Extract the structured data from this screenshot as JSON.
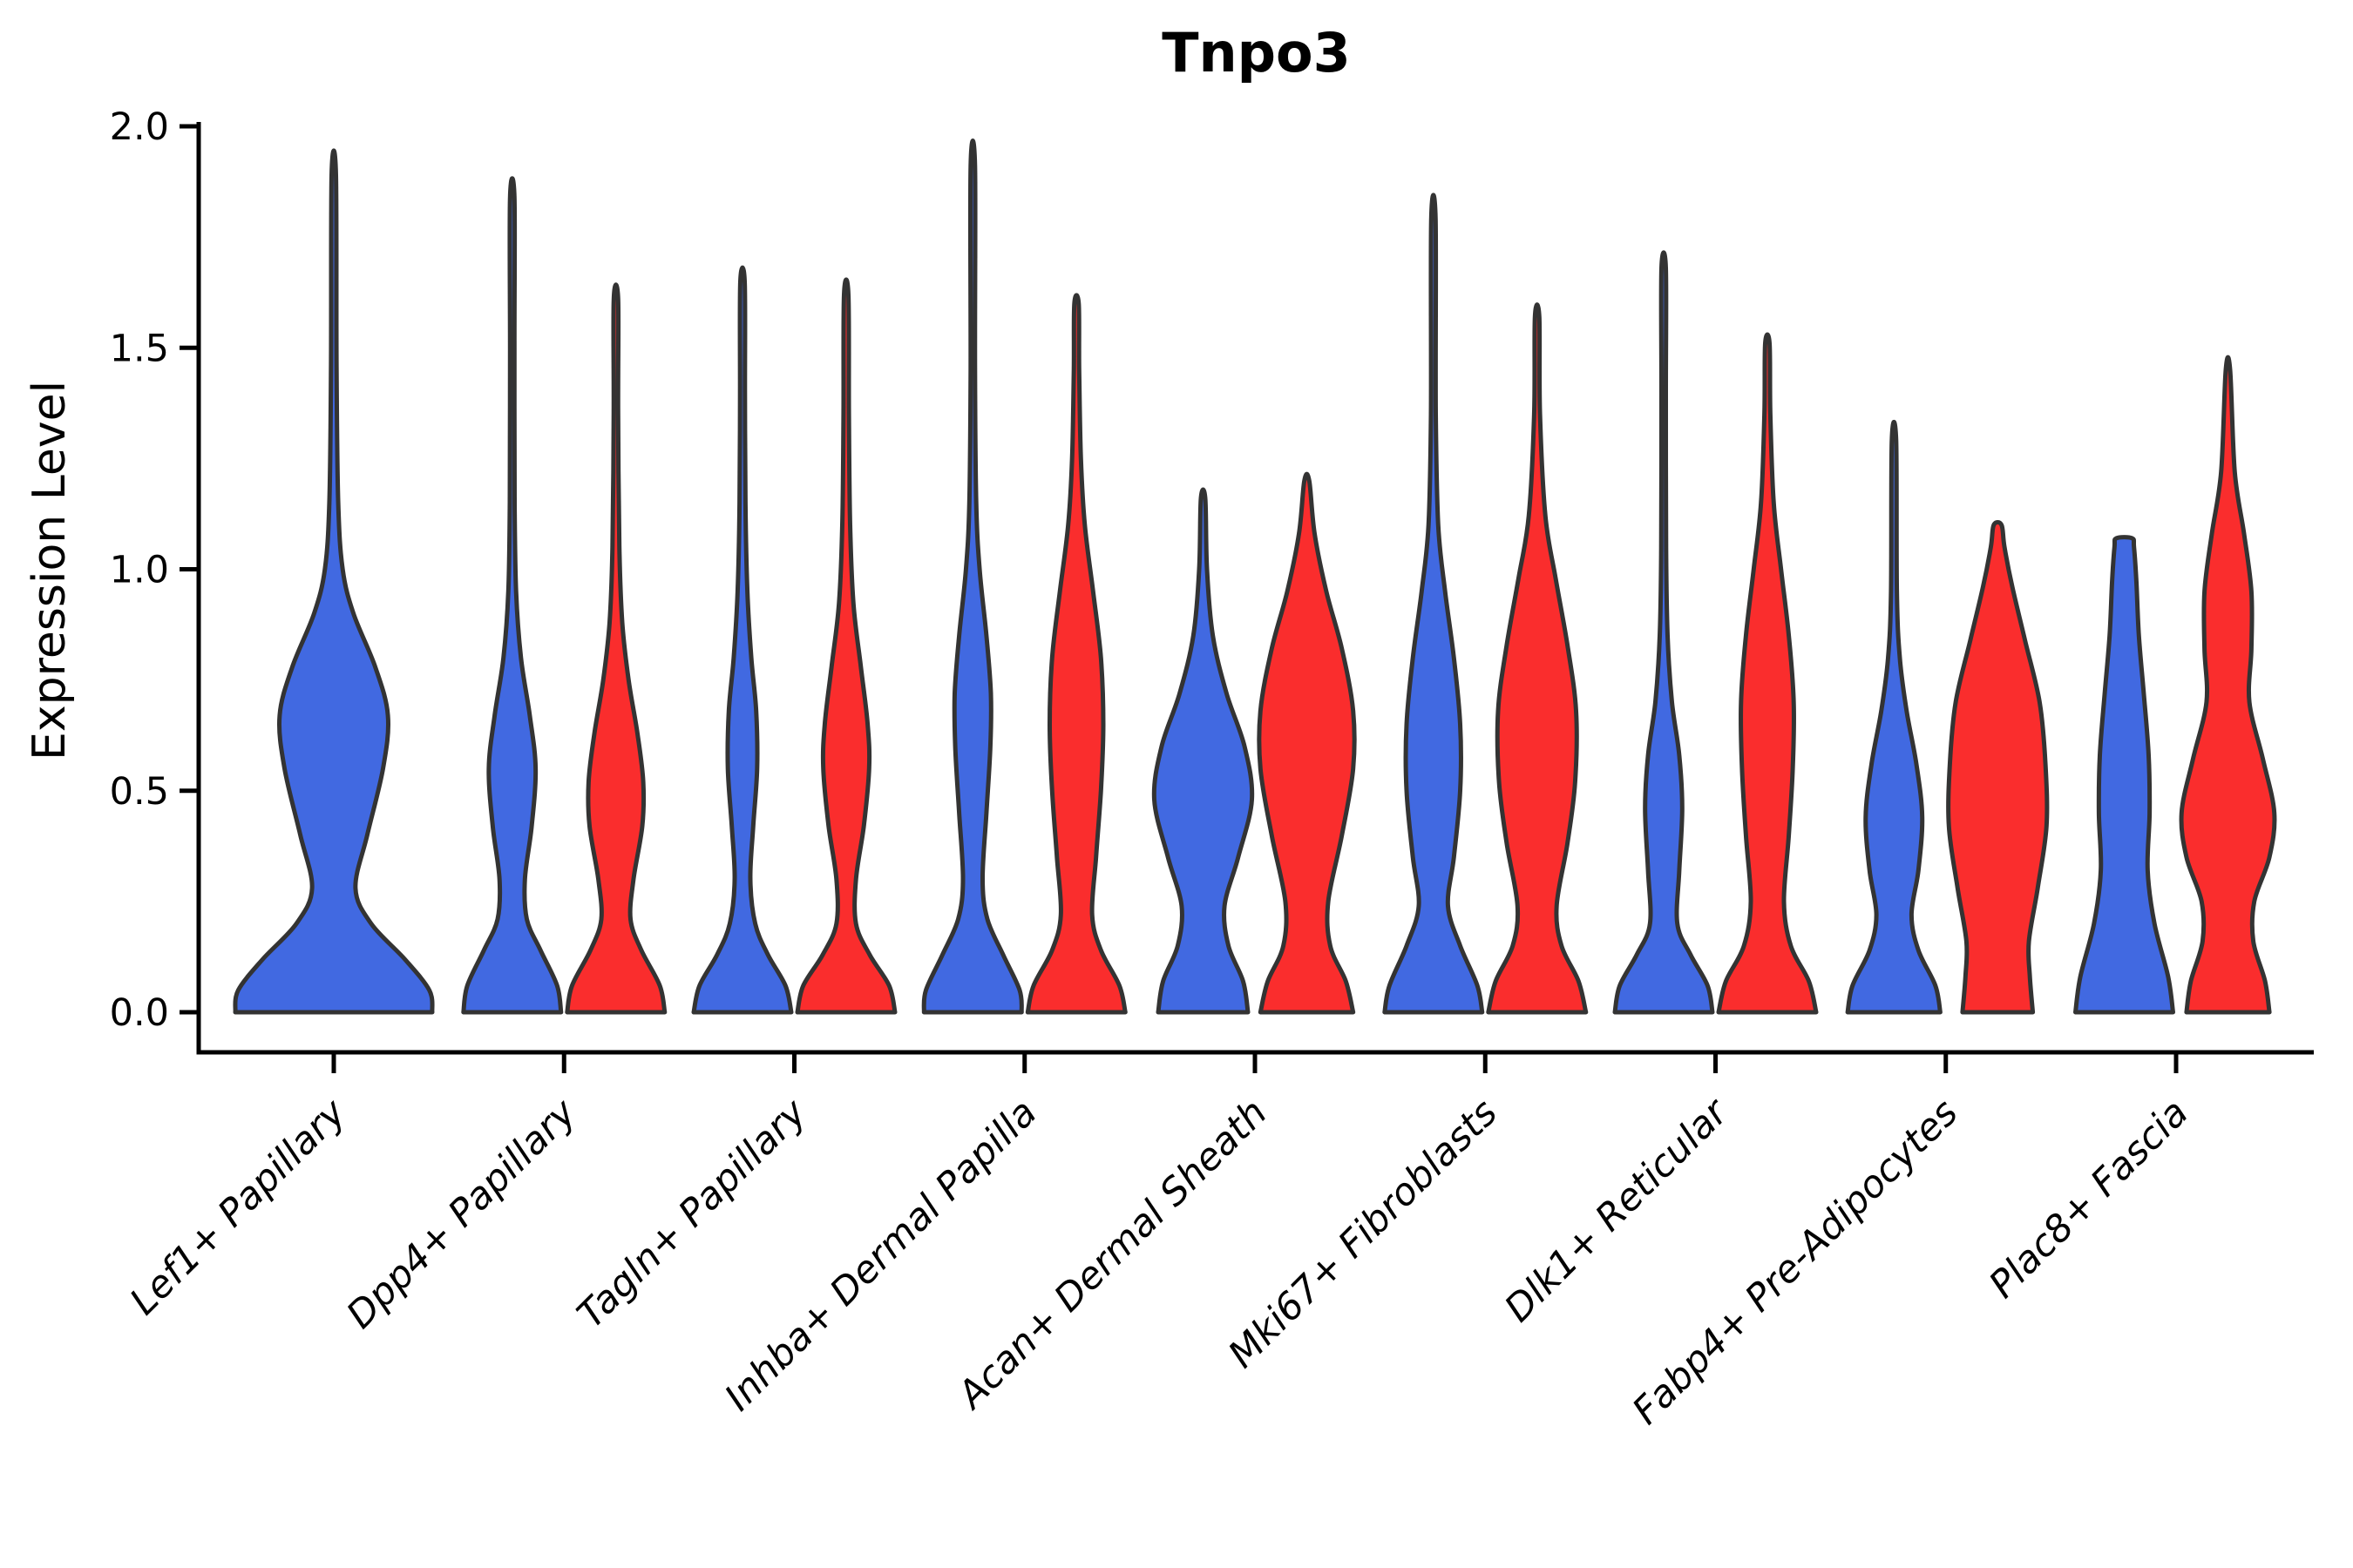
{
  "chart_data": {
    "type": "violin",
    "title": "Tnpo3",
    "ylabel": "Expression Level",
    "xlabel": "",
    "ylim": [
      0.0,
      2.0
    ],
    "ytick_labels": [
      "0.0",
      "0.5",
      "1.0",
      "1.5",
      "2.0"
    ],
    "ytick_values": [
      0.0,
      0.5,
      1.0,
      1.5,
      2.0
    ],
    "grid": false,
    "legend": "none",
    "colors": {
      "blue": "#4169E1",
      "red": "#FA2D2D",
      "outline": "#333333",
      "axis": "#000000"
    },
    "categories": [
      "Lef1+ Papillary",
      "Dpp4+ Papillary",
      "Tagln+ Papillary",
      "Inhba+ Dermal Papilla",
      "Acan+ Dermal Sheath",
      "Mki67+ Fibroblasts",
      "Dlk1+ Reticular",
      "Fabp4+ Pre-Adipocytes",
      "Plac8+ Fascia"
    ],
    "violins": [
      {
        "category": "Lef1+ Papillary",
        "side": "blue",
        "solo": true,
        "max": 1.89,
        "profile": [
          [
            0,
            1.0
          ],
          [
            0.05,
            0.97
          ],
          [
            0.12,
            0.72
          ],
          [
            0.2,
            0.38
          ],
          [
            0.28,
            0.22
          ],
          [
            0.4,
            0.34
          ],
          [
            0.55,
            0.5
          ],
          [
            0.67,
            0.55
          ],
          [
            0.78,
            0.42
          ],
          [
            0.9,
            0.2
          ],
          [
            1.0,
            0.09
          ],
          [
            1.15,
            0.045
          ],
          [
            1.45,
            0.028
          ],
          [
            1.89,
            0.02
          ]
        ]
      },
      {
        "category": "Dpp4+ Papillary",
        "side": "blue",
        "solo": false,
        "max": 1.84,
        "profile": [
          [
            0,
            1.0
          ],
          [
            0.06,
            0.92
          ],
          [
            0.14,
            0.58
          ],
          [
            0.21,
            0.3
          ],
          [
            0.3,
            0.26
          ],
          [
            0.42,
            0.4
          ],
          [
            0.55,
            0.48
          ],
          [
            0.67,
            0.36
          ],
          [
            0.8,
            0.18
          ],
          [
            0.95,
            0.08
          ],
          [
            1.15,
            0.05
          ],
          [
            1.5,
            0.035
          ],
          [
            1.84,
            0.03
          ]
        ]
      },
      {
        "category": "Dpp4+ Papillary",
        "side": "red",
        "solo": false,
        "max": 1.61,
        "profile": [
          [
            0,
            1.0
          ],
          [
            0.06,
            0.9
          ],
          [
            0.14,
            0.52
          ],
          [
            0.21,
            0.3
          ],
          [
            0.3,
            0.36
          ],
          [
            0.42,
            0.54
          ],
          [
            0.52,
            0.56
          ],
          [
            0.63,
            0.44
          ],
          [
            0.75,
            0.26
          ],
          [
            0.88,
            0.13
          ],
          [
            1.05,
            0.07
          ],
          [
            1.35,
            0.045
          ],
          [
            1.61,
            0.035
          ]
        ]
      },
      {
        "category": "Tagln+ Papillary",
        "side": "blue",
        "solo": false,
        "max": 1.65,
        "profile": [
          [
            0,
            1.0
          ],
          [
            0.06,
            0.88
          ],
          [
            0.13,
            0.52
          ],
          [
            0.2,
            0.26
          ],
          [
            0.3,
            0.16
          ],
          [
            0.42,
            0.22
          ],
          [
            0.55,
            0.3
          ],
          [
            0.68,
            0.28
          ],
          [
            0.8,
            0.18
          ],
          [
            0.95,
            0.1
          ],
          [
            1.15,
            0.06
          ],
          [
            1.4,
            0.05
          ],
          [
            1.65,
            0.045
          ]
        ]
      },
      {
        "category": "Tagln+ Papillary",
        "side": "red",
        "solo": false,
        "max": 1.62,
        "profile": [
          [
            0,
            1.0
          ],
          [
            0.06,
            0.88
          ],
          [
            0.13,
            0.48
          ],
          [
            0.2,
            0.2
          ],
          [
            0.3,
            0.2
          ],
          [
            0.42,
            0.36
          ],
          [
            0.55,
            0.47
          ],
          [
            0.65,
            0.44
          ],
          [
            0.78,
            0.3
          ],
          [
            0.92,
            0.15
          ],
          [
            1.1,
            0.08
          ],
          [
            1.35,
            0.055
          ],
          [
            1.62,
            0.045
          ]
        ]
      },
      {
        "category": "Inhba+ Dermal Papilla",
        "side": "blue",
        "solo": false,
        "max": 1.91,
        "profile": [
          [
            0,
            1.0
          ],
          [
            0.05,
            0.96
          ],
          [
            0.13,
            0.62
          ],
          [
            0.21,
            0.3
          ],
          [
            0.3,
            0.2
          ],
          [
            0.45,
            0.28
          ],
          [
            0.6,
            0.36
          ],
          [
            0.72,
            0.37
          ],
          [
            0.85,
            0.28
          ],
          [
            1.0,
            0.14
          ],
          [
            1.15,
            0.07
          ],
          [
            1.45,
            0.04
          ],
          [
            1.91,
            0.028
          ]
        ]
      },
      {
        "category": "Inhba+ Dermal Papilla",
        "side": "red",
        "solo": false,
        "max": 1.6,
        "profile": [
          [
            0,
            1.0
          ],
          [
            0.06,
            0.88
          ],
          [
            0.14,
            0.5
          ],
          [
            0.22,
            0.32
          ],
          [
            0.35,
            0.4
          ],
          [
            0.5,
            0.5
          ],
          [
            0.65,
            0.55
          ],
          [
            0.8,
            0.5
          ],
          [
            0.95,
            0.34
          ],
          [
            1.1,
            0.17
          ],
          [
            1.25,
            0.09
          ],
          [
            1.45,
            0.055
          ],
          [
            1.6,
            0.04
          ]
        ]
      },
      {
        "category": "Acan+ Dermal Sheath",
        "side": "blue",
        "solo": false,
        "max": 1.16,
        "profile": [
          [
            0,
            0.92
          ],
          [
            0.07,
            0.82
          ],
          [
            0.15,
            0.52
          ],
          [
            0.24,
            0.44
          ],
          [
            0.35,
            0.72
          ],
          [
            0.48,
            1.0
          ],
          [
            0.6,
            0.85
          ],
          [
            0.72,
            0.48
          ],
          [
            0.85,
            0.2
          ],
          [
            1.0,
            0.08
          ],
          [
            1.16,
            0.04
          ]
        ]
      },
      {
        "category": "Acan+ Dermal Sheath",
        "side": "red",
        "solo": false,
        "max": 1.2,
        "profile": [
          [
            0,
            0.95
          ],
          [
            0.07,
            0.8
          ],
          [
            0.15,
            0.48
          ],
          [
            0.25,
            0.44
          ],
          [
            0.4,
            0.72
          ],
          [
            0.55,
            0.95
          ],
          [
            0.68,
            0.95
          ],
          [
            0.82,
            0.72
          ],
          [
            0.95,
            0.4
          ],
          [
            1.08,
            0.16
          ],
          [
            1.2,
            0.05
          ]
        ]
      },
      {
        "category": "Mki67+ Fibroblasts",
        "side": "blue",
        "solo": false,
        "max": 1.79,
        "profile": [
          [
            0,
            1.0
          ],
          [
            0.06,
            0.9
          ],
          [
            0.15,
            0.55
          ],
          [
            0.24,
            0.3
          ],
          [
            0.35,
            0.42
          ],
          [
            0.5,
            0.55
          ],
          [
            0.65,
            0.55
          ],
          [
            0.8,
            0.42
          ],
          [
            0.95,
            0.24
          ],
          [
            1.1,
            0.1
          ],
          [
            1.35,
            0.05
          ],
          [
            1.79,
            0.03
          ]
        ]
      },
      {
        "category": "Mki67+ Fibroblasts",
        "side": "red",
        "solo": false,
        "max": 1.57,
        "profile": [
          [
            0,
            1.0
          ],
          [
            0.07,
            0.85
          ],
          [
            0.15,
            0.5
          ],
          [
            0.24,
            0.4
          ],
          [
            0.38,
            0.62
          ],
          [
            0.52,
            0.78
          ],
          [
            0.68,
            0.8
          ],
          [
            0.83,
            0.62
          ],
          [
            0.98,
            0.38
          ],
          [
            1.12,
            0.17
          ],
          [
            1.35,
            0.06
          ],
          [
            1.57,
            0.035
          ]
        ]
      },
      {
        "category": "Dlk1+ Reticular",
        "side": "blue",
        "solo": false,
        "max": 1.68,
        "profile": [
          [
            0,
            1.0
          ],
          [
            0.06,
            0.9
          ],
          [
            0.13,
            0.55
          ],
          [
            0.2,
            0.28
          ],
          [
            0.32,
            0.32
          ],
          [
            0.46,
            0.38
          ],
          [
            0.58,
            0.32
          ],
          [
            0.7,
            0.17
          ],
          [
            0.85,
            0.08
          ],
          [
            1.05,
            0.05
          ],
          [
            1.4,
            0.035
          ],
          [
            1.68,
            0.03
          ]
        ]
      },
      {
        "category": "Dlk1+ Reticular",
        "side": "red",
        "solo": false,
        "max": 1.51,
        "profile": [
          [
            0,
            1.0
          ],
          [
            0.07,
            0.85
          ],
          [
            0.15,
            0.48
          ],
          [
            0.25,
            0.34
          ],
          [
            0.4,
            0.44
          ],
          [
            0.55,
            0.52
          ],
          [
            0.7,
            0.54
          ],
          [
            0.85,
            0.44
          ],
          [
            1.0,
            0.28
          ],
          [
            1.15,
            0.13
          ],
          [
            1.35,
            0.06
          ],
          [
            1.51,
            0.04
          ]
        ]
      },
      {
        "category": "Fabp4+ Pre-Adipocytes",
        "side": "blue",
        "solo": false,
        "max": 1.29,
        "profile": [
          [
            0,
            0.95
          ],
          [
            0.06,
            0.85
          ],
          [
            0.14,
            0.5
          ],
          [
            0.22,
            0.36
          ],
          [
            0.32,
            0.5
          ],
          [
            0.44,
            0.58
          ],
          [
            0.56,
            0.46
          ],
          [
            0.68,
            0.26
          ],
          [
            0.8,
            0.12
          ],
          [
            0.95,
            0.06
          ],
          [
            1.29,
            0.03
          ]
        ]
      },
      {
        "category": "Fabp4+ Pre-Adipocytes",
        "side": "red",
        "solo": false,
        "max": 1.1,
        "profile": [
          [
            0,
            0.72
          ],
          [
            0.08,
            0.66
          ],
          [
            0.16,
            0.64
          ],
          [
            0.28,
            0.82
          ],
          [
            0.42,
            1.0
          ],
          [
            0.56,
            0.98
          ],
          [
            0.7,
            0.86
          ],
          [
            0.84,
            0.56
          ],
          [
            0.96,
            0.3
          ],
          [
            1.05,
            0.14
          ],
          [
            1.1,
            0.08
          ]
        ]
      },
      {
        "category": "Plac8+ Fascia",
        "side": "blue",
        "solo": false,
        "max": 1.07,
        "profile": [
          [
            0,
            1.0
          ],
          [
            0.08,
            0.9
          ],
          [
            0.2,
            0.62
          ],
          [
            0.32,
            0.48
          ],
          [
            0.45,
            0.52
          ],
          [
            0.58,
            0.5
          ],
          [
            0.72,
            0.4
          ],
          [
            0.85,
            0.3
          ],
          [
            0.97,
            0.25
          ],
          [
            1.05,
            0.2
          ],
          [
            1.07,
            0.16
          ]
        ]
      },
      {
        "category": "Plac8+ Fascia",
        "side": "red",
        "solo": false,
        "max": 1.45,
        "profile": [
          [
            0,
            0.85
          ],
          [
            0.07,
            0.76
          ],
          [
            0.16,
            0.52
          ],
          [
            0.25,
            0.54
          ],
          [
            0.35,
            0.85
          ],
          [
            0.45,
            0.95
          ],
          [
            0.57,
            0.72
          ],
          [
            0.7,
            0.44
          ],
          [
            0.82,
            0.48
          ],
          [
            0.95,
            0.48
          ],
          [
            1.08,
            0.33
          ],
          [
            1.22,
            0.14
          ],
          [
            1.45,
            0.04
          ]
        ]
      }
    ]
  }
}
